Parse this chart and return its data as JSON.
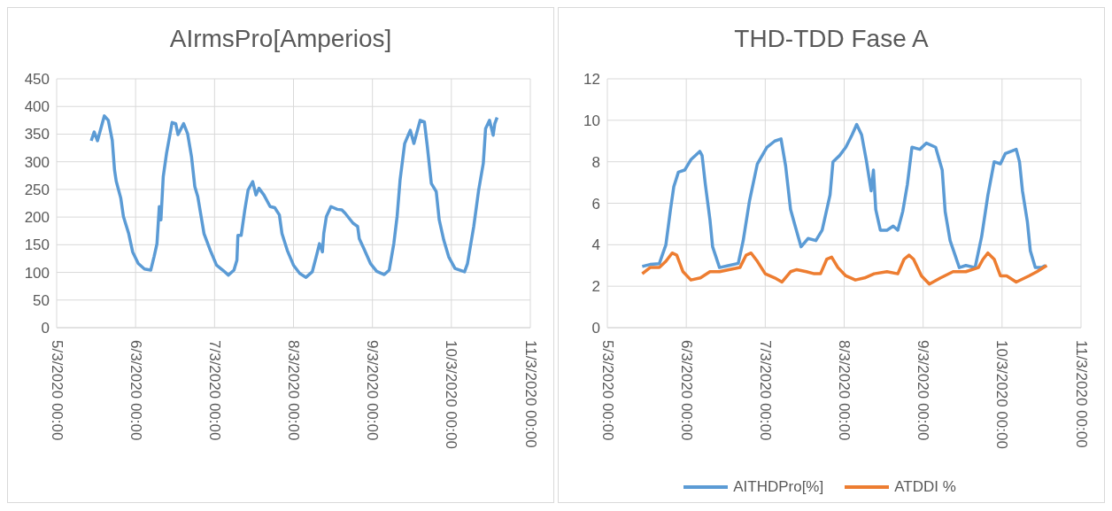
{
  "chart_data": [
    {
      "type": "line",
      "title": "AIrmsPro[Amperios]",
      "grid": true,
      "marker": "none",
      "legend": false,
      "xlim": [
        "2020-03-05",
        "2020-03-11"
      ],
      "xticks": [
        {
          "value": "2020-03-05",
          "label": "5/3/2020 00:00"
        },
        {
          "value": "2020-03-06",
          "label": "6/3/2020 00:00"
        },
        {
          "value": "2020-03-07",
          "label": "7/3/2020 00:00"
        },
        {
          "value": "2020-03-08",
          "label": "8/3/2020 00:00"
        },
        {
          "value": "2020-03-09",
          "label": "9/3/2020 00:00"
        },
        {
          "value": "2020-03-10",
          "label": "10/3/2020 00:00"
        },
        {
          "value": "2020-03-11",
          "label": "11/3/2020 00:00"
        }
      ],
      "ylim": [
        0,
        450
      ],
      "yticks": [
        0,
        50,
        100,
        150,
        200,
        250,
        300,
        350,
        400,
        450
      ],
      "x": [
        "2020-03-05T10:30",
        "2020-03-05T11:24",
        "2020-03-05T12:24",
        "2020-03-05T13:18",
        "2020-03-05T14:30",
        "2020-03-05T15:42",
        "2020-03-05T16:54",
        "2020-03-05T17:36",
        "2020-03-05T18:06",
        "2020-03-05T19:30",
        "2020-03-05T20:18",
        "2020-03-05T21:54",
        "2020-03-05T23:06",
        "2020-03-06T00:48",
        "2020-03-06T02:42",
        "2020-03-06T04:36",
        "2020-03-06T05:36",
        "2020-03-06T06:30",
        "2020-03-06T07:12",
        "2020-03-06T07:42",
        "2020-03-06T08:24",
        "2020-03-06T09:24",
        "2020-03-06T11:06",
        "2020-03-06T12:12",
        "2020-03-06T12:54",
        "2020-03-06T14:36",
        "2020-03-06T15:48",
        "2020-03-06T17:00",
        "2020-03-06T18:00",
        "2020-03-06T18:54",
        "2020-03-06T20:48",
        "2020-03-06T22:42",
        "2020-03-07T00:36",
        "2020-03-07T02:30",
        "2020-03-07T04:12",
        "2020-03-07T05:54",
        "2020-03-07T06:48",
        "2020-03-07T07:06",
        "2020-03-07T08:06",
        "2020-03-07T09:12",
        "2020-03-07T10:12",
        "2020-03-07T11:36",
        "2020-03-07T12:36",
        "2020-03-07T13:30",
        "2020-03-07T15:00",
        "2020-03-07T16:54",
        "2020-03-07T18:18",
        "2020-03-07T19:42",
        "2020-03-07T20:30",
        "2020-03-07T22:06",
        "2020-03-08T00:00",
        "2020-03-08T01:54",
        "2020-03-08T03:48",
        "2020-03-08T05:42",
        "2020-03-08T06:54",
        "2020-03-08T07:54",
        "2020-03-08T08:48",
        "2020-03-08T09:12",
        "2020-03-08T10:00",
        "2020-03-08T11:24",
        "2020-03-08T13:18",
        "2020-03-08T14:42",
        "2020-03-08T15:42",
        "2020-03-08T18:06",
        "2020-03-08T19:30",
        "2020-03-08T20:00",
        "2020-03-08T21:24",
        "2020-03-08T23:24",
        "2020-03-09T01:18",
        "2020-03-09T03:36",
        "2020-03-09T05:06",
        "2020-03-09T06:30",
        "2020-03-09T07:30",
        "2020-03-09T08:24",
        "2020-03-09T09:48",
        "2020-03-09T11:30",
        "2020-03-09T12:36",
        "2020-03-09T14:30",
        "2020-03-09T15:48",
        "2020-03-09T16:42",
        "2020-03-09T17:54",
        "2020-03-09T19:24",
        "2020-03-09T20:18",
        "2020-03-09T21:42",
        "2020-03-09T23:12",
        "2020-03-10T01:06",
        "2020-03-10T04:00",
        "2020-03-10T04:54",
        "2020-03-10T06:48",
        "2020-03-10T08:18",
        "2020-03-10T09:42",
        "2020-03-10T10:24",
        "2020-03-10T11:36",
        "2020-03-10T12:42",
        "2020-03-10T13:12",
        "2020-03-10T13:54"
      ],
      "series": [
        {
          "color": "#5b9bd5",
          "values": [
            338,
            354,
            338,
            357,
            383,
            375,
            339,
            285,
            265,
            234,
            201,
            170,
            137,
            116,
            106,
            104,
            128,
            152,
            219,
            195,
            273,
            315,
            371,
            369,
            349,
            369,
            351,
            309,
            255,
            237,
            170,
            140,
            113,
            104,
            95,
            104,
            122,
            167,
            167,
            213,
            249,
            264,
            240,
            252,
            240,
            219,
            217,
            204,
            170,
            140,
            113,
            98,
            91,
            101,
            128,
            152,
            137,
            170,
            201,
            219,
            214,
            213,
            207,
            189,
            183,
            161,
            143,
            116,
            102,
            96,
            104,
            152,
            201,
            267,
            333,
            357,
            333,
            375,
            372,
            327,
            261,
            246,
            195,
            158,
            128,
            107,
            101,
            116,
            183,
            249,
            297,
            360,
            375,
            348,
            369,
            380
          ]
        }
      ]
    },
    {
      "type": "line",
      "title": "THD-TDD Fase A",
      "grid": true,
      "marker": "none",
      "legend": "bottom",
      "xlim": [
        "2020-03-05",
        "2020-03-11"
      ],
      "xticks": [
        {
          "value": "2020-03-05",
          "label": "5/3/2020 00:00"
        },
        {
          "value": "2020-03-06",
          "label": "6/3/2020 00:00"
        },
        {
          "value": "2020-03-07",
          "label": "7/3/2020 00:00"
        },
        {
          "value": "2020-03-08",
          "label": "8/3/2020 00:00"
        },
        {
          "value": "2020-03-09",
          "label": "9/3/2020 00:00"
        },
        {
          "value": "2020-03-10",
          "label": "10/3/2020 00:00"
        },
        {
          "value": "2020-03-11",
          "label": "11/3/2020 00:00"
        }
      ],
      "ylim": [
        0,
        12
      ],
      "yticks": [
        0,
        2,
        4,
        6,
        8,
        10,
        12
      ],
      "series": [
        {
          "name": "AITHDPro[%]",
          "color": "#5b9bd5",
          "x": [
            "2020-03-05T10:36",
            "2020-03-05T13:00",
            "2020-03-05T15:48",
            "2020-03-05T17:48",
            "2020-03-05T19:12",
            "2020-03-05T20:12",
            "2020-03-05T21:36",
            "2020-03-05T23:30",
            "2020-03-06T01:24",
            "2020-03-06T04:06",
            "2020-03-06T04:48",
            "2020-03-06T05:48",
            "2020-03-06T07:12",
            "2020-03-06T08:00",
            "2020-03-06T10:06",
            "2020-03-06T13:00",
            "2020-03-06T15:48",
            "2020-03-06T17:18",
            "2020-03-06T19:12",
            "2020-03-06T21:36",
            "2020-03-07T00:30",
            "2020-03-07T02:54",
            "2020-03-07T04:48",
            "2020-03-07T06:12",
            "2020-03-07T07:42",
            "2020-03-07T09:06",
            "2020-03-07T10:54",
            "2020-03-07T13:00",
            "2020-03-07T15:24",
            "2020-03-07T17:18",
            "2020-03-07T19:42",
            "2020-03-07T20:36",
            "2020-03-07T22:36",
            "2020-03-08T00:30",
            "2020-03-08T02:24",
            "2020-03-08T03:48",
            "2020-03-08T05:18",
            "2020-03-08T06:42",
            "2020-03-08T08:12",
            "2020-03-08T08:54",
            "2020-03-08T09:36",
            "2020-03-08T11:00",
            "2020-03-08T13:00",
            "2020-03-08T14:54",
            "2020-03-08T16:18",
            "2020-03-08T17:48",
            "2020-03-08T19:12",
            "2020-03-08T20:36",
            "2020-03-08T23:00",
            "2020-03-09T01:00",
            "2020-03-09T03:48",
            "2020-03-09T05:48",
            "2020-03-09T06:42",
            "2020-03-09T08:12",
            "2020-03-09T11:00",
            "2020-03-09T13:00",
            "2020-03-09T15:48",
            "2020-03-09T17:48",
            "2020-03-09T19:42",
            "2020-03-09T21:36",
            "2020-03-09T23:30",
            "2020-03-10T01:00",
            "2020-03-10T04:18",
            "2020-03-10T05:18",
            "2020-03-10T06:12",
            "2020-03-10T07:42",
            "2020-03-10T08:36",
            "2020-03-10T10:06",
            "2020-03-10T12:00",
            "2020-03-10T13:12"
          ],
          "values": [
            2.95,
            3.05,
            3.09,
            4.0,
            5.7,
            6.8,
            7.5,
            7.6,
            8.1,
            8.5,
            8.3,
            6.9,
            5.2,
            3.9,
            2.9,
            3.0,
            3.1,
            4.2,
            6.1,
            7.9,
            8.7,
            9.0,
            9.1,
            7.8,
            5.7,
            4.9,
            3.9,
            4.3,
            4.2,
            4.7,
            6.4,
            8.0,
            8.3,
            8.7,
            9.3,
            9.8,
            9.3,
            8.1,
            6.6,
            7.6,
            5.7,
            4.7,
            4.7,
            4.9,
            4.7,
            5.6,
            6.9,
            8.7,
            8.6,
            8.9,
            8.7,
            7.6,
            5.6,
            4.2,
            2.9,
            3.0,
            2.9,
            4.4,
            6.4,
            8.0,
            7.9,
            8.4,
            8.6,
            8.0,
            6.6,
            5.1,
            3.7,
            2.9,
            2.9,
            3.0
          ]
        },
        {
          "name": "ATDDI %",
          "color": "#ed7d31",
          "x": [
            "2020-03-05T10:36",
            "2020-03-05T13:00",
            "2020-03-05T15:48",
            "2020-03-05T17:48",
            "2020-03-05T19:42",
            "2020-03-05T21:06",
            "2020-03-05T23:00",
            "2020-03-06T01:24",
            "2020-03-06T04:18",
            "2020-03-06T07:12",
            "2020-03-06T10:06",
            "2020-03-06T13:00",
            "2020-03-06T16:18",
            "2020-03-06T18:12",
            "2020-03-06T19:42",
            "2020-03-06T21:36",
            "2020-03-07T00:00",
            "2020-03-07T02:54",
            "2020-03-07T05:06",
            "2020-03-07T07:42",
            "2020-03-07T09:36",
            "2020-03-07T12:30",
            "2020-03-07T14:54",
            "2020-03-07T16:48",
            "2020-03-07T18:42",
            "2020-03-07T20:12",
            "2020-03-07T22:06",
            "2020-03-08T00:30",
            "2020-03-08T03:24",
            "2020-03-08T06:12",
            "2020-03-08T09:06",
            "2020-03-08T13:00",
            "2020-03-08T16:18",
            "2020-03-08T18:12",
            "2020-03-08T19:42",
            "2020-03-08T21:06",
            "2020-03-08T23:30",
            "2020-03-09T01:54",
            "2020-03-09T05:18",
            "2020-03-09T09:06",
            "2020-03-09T13:00",
            "2020-03-09T16:48",
            "2020-03-09T18:12",
            "2020-03-09T19:42",
            "2020-03-09T21:36",
            "2020-03-09T23:30",
            "2020-03-10T01:24",
            "2020-03-10T04:18",
            "2020-03-10T08:12",
            "2020-03-10T10:36",
            "2020-03-10T13:36"
          ],
          "values": [
            2.6,
            2.9,
            2.9,
            3.2,
            3.6,
            3.5,
            2.7,
            2.3,
            2.4,
            2.7,
            2.7,
            2.8,
            2.9,
            3.5,
            3.6,
            3.2,
            2.6,
            2.4,
            2.2,
            2.7,
            2.8,
            2.7,
            2.6,
            2.6,
            3.3,
            3.4,
            2.9,
            2.5,
            2.3,
            2.4,
            2.6,
            2.7,
            2.6,
            3.3,
            3.5,
            3.3,
            2.5,
            2.1,
            2.4,
            2.7,
            2.7,
            2.9,
            3.3,
            3.6,
            3.3,
            2.5,
            2.5,
            2.2,
            2.5,
            2.7,
            3.0
          ]
        }
      ]
    }
  ]
}
